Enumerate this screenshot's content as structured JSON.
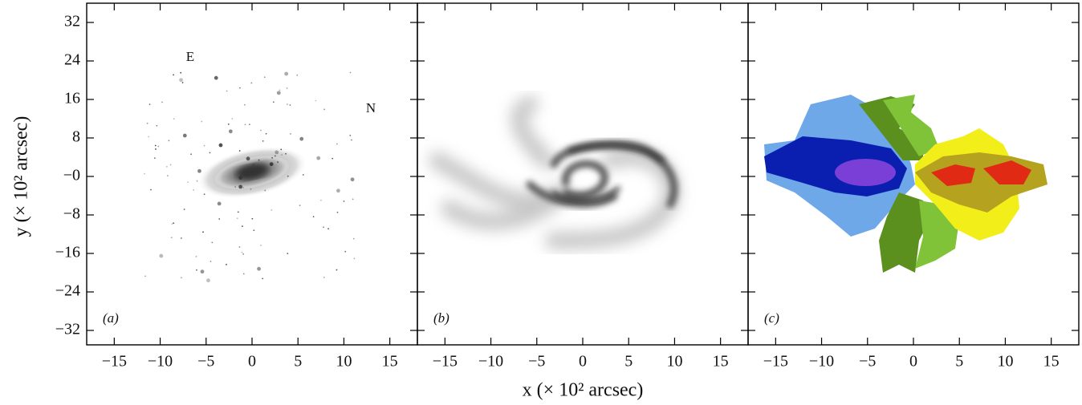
{
  "chart_data": [
    {
      "type": "image",
      "panel_label": "(a)",
      "annotations": [
        "E",
        "N"
      ],
      "ylabel": "y (× 10² arcsec)",
      "xlim": [
        -18,
        18
      ],
      "xticks": [
        {
          "value": -15,
          "label": "−15"
        },
        {
          "value": -10,
          "label": "−10"
        },
        {
          "value": -5,
          "label": "−5"
        },
        0,
        5,
        10,
        15
      ],
      "ylim": [
        -35,
        36
      ],
      "yticks": [
        32,
        24,
        16,
        8,
        {
          "value": 0,
          "label": "−0"
        },
        {
          "value": -8,
          "label": "−8"
        },
        {
          "value": -16,
          "label": "−16"
        },
        {
          "value": -24,
          "label": "−24"
        },
        {
          "value": -32,
          "label": "−32"
        }
      ]
    },
    {
      "type": "image",
      "panel_label": "(b)",
      "xlabel": "x (× 10² arcsec)",
      "xlim": [
        -18,
        18
      ],
      "xticks": [
        {
          "value": -15,
          "label": "−15"
        },
        {
          "value": -10,
          "label": "−10"
        },
        {
          "value": -5,
          "label": "−5"
        },
        0,
        5,
        10,
        15
      ],
      "ylim": [
        -35,
        36
      ],
      "yticks": [
        32,
        24,
        16,
        8,
        0,
        -8,
        -16,
        -24,
        -32
      ]
    },
    {
      "type": "image",
      "panel_label": "(c)",
      "xlim": [
        -18,
        18
      ],
      "xticks": [
        {
          "value": -15,
          "label": "−15"
        },
        {
          "value": -10,
          "label": "−10"
        },
        {
          "value": -5,
          "label": "−5"
        },
        0,
        5,
        10,
        15
      ],
      "ylim": [
        -35,
        36
      ],
      "yticks": [
        32,
        24,
        16,
        8,
        0,
        -8,
        -16,
        -24,
        -32
      ]
    }
  ]
}
